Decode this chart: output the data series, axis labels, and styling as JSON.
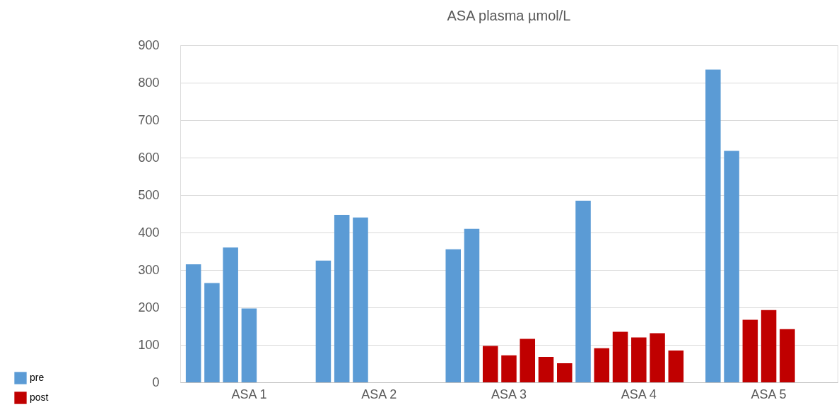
{
  "chart_data": {
    "type": "bar",
    "title": "ASA plasma µmol/L",
    "categories": [
      null,
      null,
      null,
      "ASA 1",
      null,
      null,
      null,
      null,
      null,
      null,
      "ASA 2",
      null,
      null,
      null,
      null,
      null,
      null,
      "ASA 3",
      null,
      null,
      null,
      null,
      null,
      null,
      "ASA 4",
      null,
      null,
      null,
      null,
      null,
      null,
      "ASA 5",
      null,
      null,
      null
    ],
    "series": [
      {
        "name": "pre",
        "color": "#5b9bd5",
        "values": [
          315,
          265,
          360,
          197,
          null,
          null,
          null,
          325,
          447,
          440,
          null,
          null,
          null,
          null,
          355,
          410,
          null,
          null,
          null,
          null,
          null,
          485,
          null,
          null,
          null,
          null,
          null,
          null,
          835,
          618,
          null,
          null,
          null,
          null,
          null
        ]
      },
      {
        "name": "post",
        "color": "#c00000",
        "values": [
          null,
          null,
          null,
          null,
          null,
          null,
          null,
          null,
          null,
          null,
          null,
          null,
          null,
          null,
          null,
          null,
          97,
          72,
          116,
          68,
          51,
          null,
          91,
          135,
          120,
          131,
          85,
          null,
          null,
          null,
          167,
          193,
          142,
          null,
          null
        ]
      }
    ],
    "ylim": [
      0,
      900
    ],
    "yticks": [
      0,
      100,
      200,
      300,
      400,
      500,
      600,
      700,
      800,
      900
    ],
    "grid": "y",
    "legend": "bottom left"
  }
}
